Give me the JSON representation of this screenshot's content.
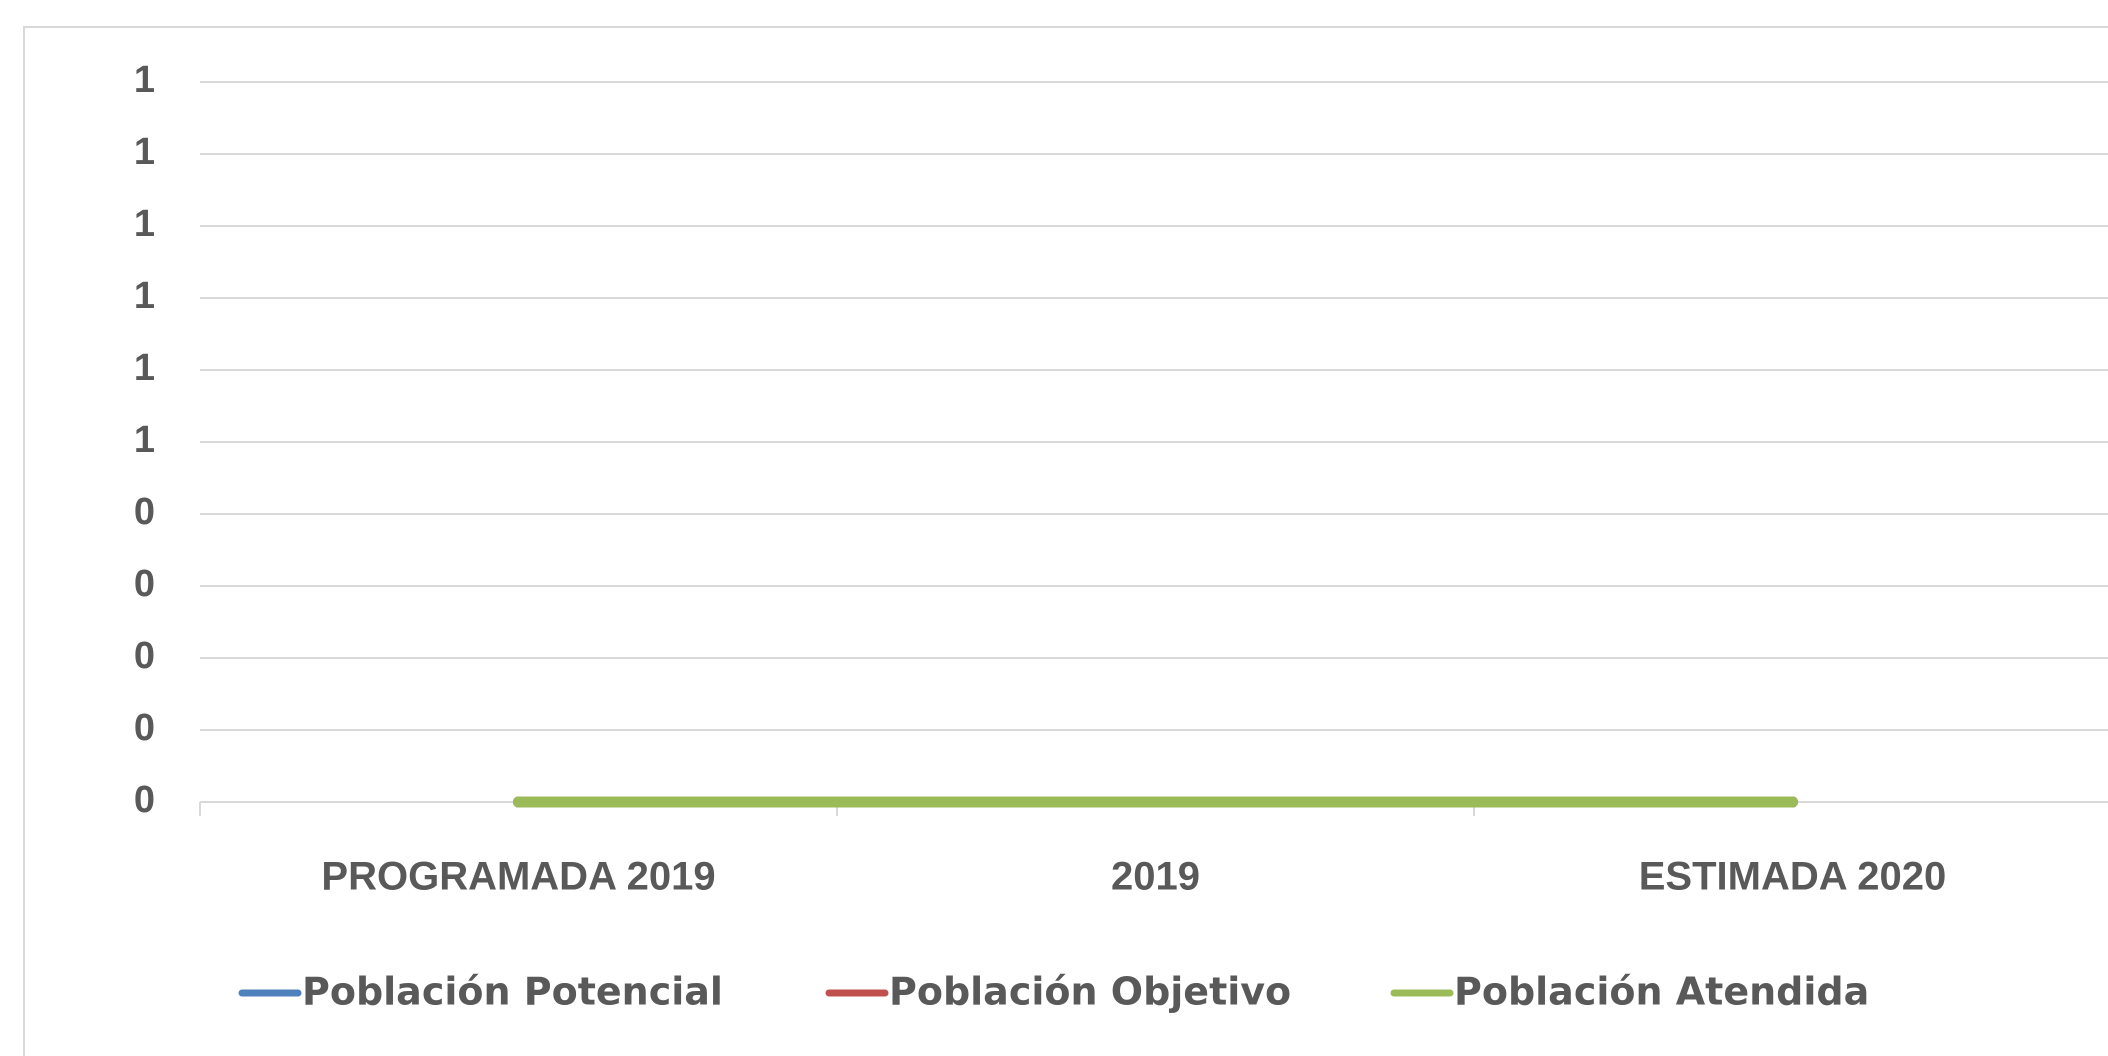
{
  "chart_data": {
    "type": "line",
    "categories": [
      "PROGRAMADA 2019",
      "2019",
      "ESTIMADA 2020"
    ],
    "series": [
      {
        "name": "Población Potencial",
        "color": "#4f81bd",
        "values": [
          0,
          0,
          0
        ]
      },
      {
        "name": "Población Objetivo",
        "color": "#c0504d",
        "values": [
          0,
          0,
          0
        ]
      },
      {
        "name": "Población Atendida",
        "color": "#9bbb59",
        "values": [
          0,
          0,
          0
        ]
      }
    ],
    "ylim": [
      0,
      1
    ],
    "yticks": [
      0,
      {
        "value": 0.1,
        "label": "0"
      },
      {
        "value": 0.2,
        "label": "0"
      },
      {
        "value": 0.3,
        "label": "0"
      },
      {
        "value": 0.4,
        "label": "0"
      },
      {
        "value": 0.5,
        "label": "1"
      },
      {
        "value": 0.6,
        "label": "1"
      },
      {
        "value": 0.7,
        "label": "1"
      },
      {
        "value": 0.8,
        "label": "1"
      },
      {
        "value": 0.9,
        "label": "1"
      },
      1
    ],
    "grid": true,
    "legend": "bottom"
  }
}
